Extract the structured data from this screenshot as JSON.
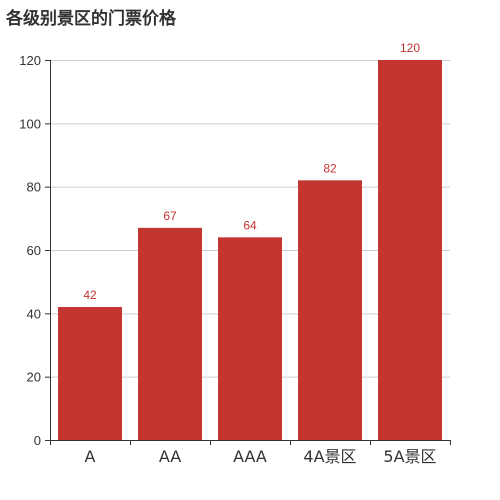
{
  "chart_data": {
    "type": "bar",
    "title": "各级别景区的门票价格",
    "categories": [
      "A",
      "AA",
      "AAA",
      "4A景区",
      "5A景区"
    ],
    "values": [
      42,
      67,
      64,
      82,
      120
    ],
    "ylim": [
      0,
      120
    ],
    "yticks": [
      0,
      20,
      40,
      60,
      80,
      100,
      120
    ],
    "xlabel": "",
    "ylabel": "",
    "grid": true,
    "bar_color": "#c23531",
    "label_color": "#c23531"
  }
}
